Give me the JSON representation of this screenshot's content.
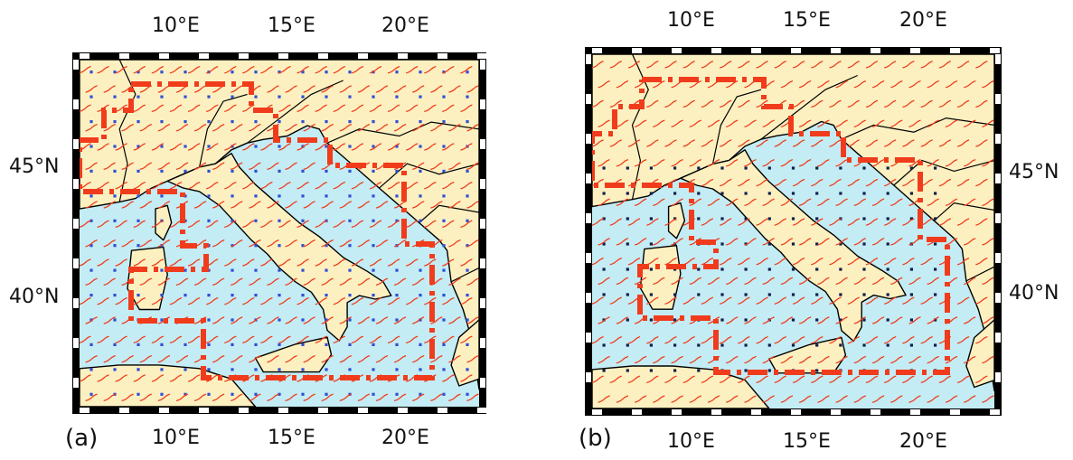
{
  "panels": [
    {
      "id": "a",
      "label": "(a)",
      "top_lon_labels": [
        "10°E",
        "15°E",
        "20°E"
      ],
      "bottom_lon_labels": [
        "10°E",
        "15°E",
        "20°E"
      ],
      "lat_labels": [
        "45°N",
        "40°N"
      ],
      "lat_label_side": "left"
    },
    {
      "id": "b",
      "label": "(b)",
      "top_lon_labels": [
        "10°E",
        "15°E",
        "20°E"
      ],
      "bottom_lon_labels": [
        "10°E",
        "15°E",
        "20°E"
      ],
      "lat_labels": [
        "45°N",
        "40°N"
      ],
      "lat_label_side": "right"
    }
  ],
  "colors": {
    "sea": "#c4ecf4",
    "land": "#fcf0c0",
    "domain_boundary": "#f03c1c",
    "wind_vector": "#f03c1c",
    "grid_point_a": "#2e4fd6",
    "grid_point_b": "#10204e",
    "frame": "#000000"
  }
}
